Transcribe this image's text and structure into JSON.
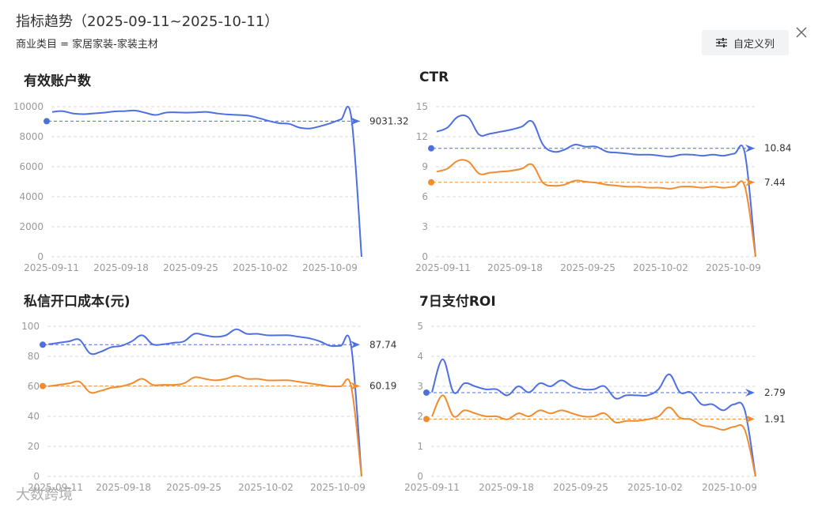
{
  "header": {
    "title": "指标趋势（2025-09-11~2025-10-11）",
    "subtitle": "商业类目 = 家居家装-家装主材",
    "custom_columns_label": "自定义列"
  },
  "watermark": "大数跨境",
  "colors": {
    "blue": "#4e6fe0",
    "orange": "#f08c2e",
    "grid": "#d9d9d9",
    "axis_text": "#999999"
  },
  "chart_data": [
    {
      "type": "line",
      "title": "有效账户数",
      "x_ticks": [
        "2025-09-11",
        "2025-09-18",
        "2025-09-25",
        "2025-10-02",
        "2025-10-09"
      ],
      "y_ticks": [
        0,
        2000,
        4000,
        6000,
        8000,
        10000
      ],
      "ylim": [
        0,
        10000
      ],
      "grid": true,
      "series": [
        {
          "color": "blue",
          "values": [
            9650,
            9700,
            9550,
            9500,
            9550,
            9600,
            9680,
            9700,
            9740,
            9600,
            9450,
            9600,
            9620,
            9600,
            9620,
            9650,
            9550,
            9480,
            9450,
            9400,
            9250,
            9050,
            8900,
            8850,
            8600,
            8550,
            8700,
            8900,
            9150,
            9300,
            0
          ]
        }
      ],
      "reference_lines": [
        {
          "color": "blue",
          "value": 9031.32,
          "label": "9031.32"
        }
      ]
    },
    {
      "type": "line",
      "title": "CTR",
      "x_ticks": [
        "2025-09-11",
        "2025-09-18",
        "2025-09-25",
        "2025-10-02",
        "2025-10-09"
      ],
      "y_ticks": [
        0,
        3,
        6,
        9,
        12,
        15
      ],
      "ylim": [
        0,
        15
      ],
      "grid": true,
      "series": [
        {
          "color": "blue",
          "values": [
            12.5,
            12.9,
            14.0,
            13.9,
            12.2,
            12.3,
            12.5,
            12.7,
            13.0,
            13.5,
            11.2,
            10.5,
            10.7,
            11.2,
            11.0,
            11.0,
            10.5,
            10.4,
            10.3,
            10.2,
            10.2,
            10.1,
            10.0,
            10.2,
            10.2,
            10.1,
            10.2,
            10.1,
            10.3,
            10.3,
            0
          ]
        },
        {
          "color": "orange",
          "values": [
            8.5,
            8.8,
            9.6,
            9.5,
            8.3,
            8.4,
            8.5,
            8.6,
            8.8,
            9.2,
            7.4,
            7.1,
            7.2,
            7.6,
            7.5,
            7.4,
            7.2,
            7.1,
            7.0,
            7.0,
            6.9,
            6.9,
            6.8,
            7.0,
            7.0,
            6.9,
            7.0,
            6.9,
            7.0,
            7.0,
            0
          ]
        }
      ],
      "reference_lines": [
        {
          "color": "blue",
          "value": 10.84,
          "label": "10.84"
        },
        {
          "color": "orange",
          "value": 7.44,
          "label": "7.44"
        }
      ]
    },
    {
      "type": "line",
      "title": "私信开口成本(元)",
      "x_ticks": [
        "2025-09-11",
        "2025-09-18",
        "2025-09-25",
        "2025-10-02",
        "2025-10-09"
      ],
      "y_ticks": [
        0,
        20,
        40,
        60,
        80,
        100
      ],
      "ylim": [
        0,
        100
      ],
      "grid": true,
      "series": [
        {
          "color": "blue",
          "values": [
            88,
            89,
            90,
            91,
            82,
            83,
            86,
            87,
            90,
            94,
            88,
            88,
            89,
            90,
            95,
            94,
            93,
            94,
            98,
            95,
            95,
            94,
            94,
            94,
            93,
            92,
            90,
            87,
            87,
            87,
            0
          ]
        },
        {
          "color": "orange",
          "values": [
            60,
            61,
            62,
            63,
            56,
            57,
            59,
            60,
            62,
            65,
            61,
            61,
            61,
            62,
            66,
            65,
            64,
            65,
            67,
            65,
            65,
            64,
            64,
            64,
            63,
            62,
            61,
            60,
            60,
            60,
            0
          ]
        }
      ],
      "reference_lines": [
        {
          "color": "blue",
          "value": 87.74,
          "label": "87.74"
        },
        {
          "color": "orange",
          "value": 60.19,
          "label": "60.19"
        }
      ]
    },
    {
      "type": "line",
      "title": "7日支付ROI",
      "x_ticks": [
        "2025-09-11",
        "2025-09-18",
        "2025-09-25",
        "2025-10-02",
        "2025-10-09"
      ],
      "y_ticks": [
        0,
        1,
        2,
        3,
        4,
        5
      ],
      "ylim": [
        0,
        5
      ],
      "grid": true,
      "series": [
        {
          "color": "blue",
          "values": [
            2.8,
            3.9,
            2.8,
            3.1,
            3.0,
            2.9,
            2.9,
            2.7,
            3.0,
            2.8,
            3.1,
            3.0,
            3.2,
            3.0,
            2.9,
            2.9,
            3.0,
            2.6,
            2.7,
            2.7,
            2.7,
            2.9,
            3.4,
            2.8,
            2.8,
            2.4,
            2.4,
            2.2,
            2.4,
            2.2,
            0
          ]
        },
        {
          "color": "orange",
          "values": [
            2.0,
            2.7,
            2.0,
            2.2,
            2.1,
            2.0,
            2.0,
            1.9,
            2.1,
            2.0,
            2.2,
            2.1,
            2.2,
            2.1,
            2.0,
            2.0,
            2.1,
            1.8,
            1.85,
            1.85,
            1.9,
            2.0,
            2.3,
            1.95,
            1.9,
            1.7,
            1.65,
            1.55,
            1.65,
            1.55,
            0
          ]
        }
      ],
      "reference_lines": [
        {
          "color": "blue",
          "value": 2.79,
          "label": "2.79"
        },
        {
          "color": "orange",
          "value": 1.91,
          "label": "1.91"
        }
      ]
    }
  ]
}
